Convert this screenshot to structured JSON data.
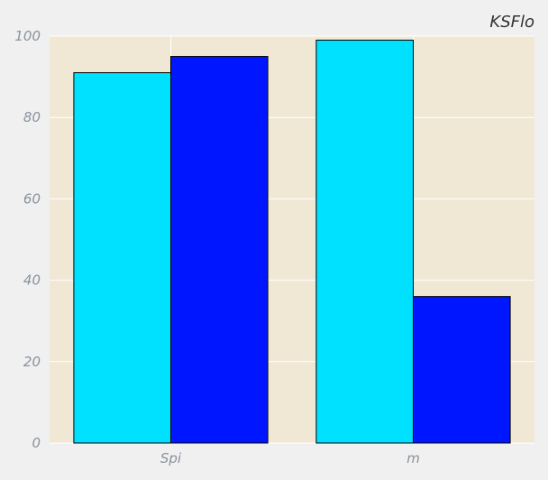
{
  "chart_data": {
    "type": "bar",
    "title": "KSFlo",
    "xlabel": "",
    "ylabel": "",
    "categories": [
      "Spi",
      "m"
    ],
    "series": [
      {
        "values": [
          91,
          99
        ],
        "color": "#00e1ff"
      },
      {
        "values": [
          95,
          36
        ],
        "color": "#0016ff"
      }
    ],
    "ylim": [
      0,
      100
    ],
    "yticks": [
      0,
      20,
      40,
      60,
      80,
      100
    ],
    "grid": true,
    "legend": "none",
    "colors": {
      "background": "#f0f0f0",
      "plot_background": "#f0e8d4",
      "grid": "#ffffff",
      "bar_edge": "#000000",
      "tick_text": "#8a929c",
      "title_text": "#333333"
    }
  }
}
